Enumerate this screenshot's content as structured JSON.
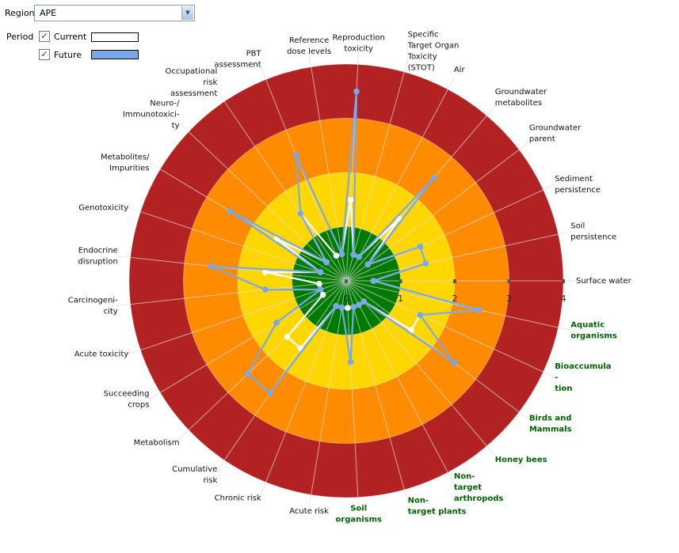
{
  "controls": {
    "region_label": "Region",
    "region_value": "APE",
    "period_label": "Period",
    "periods": [
      {
        "label": "Current",
        "checked": true,
        "color": "#ffffff"
      },
      {
        "label": "Future",
        "checked": true,
        "color": "#78a8e8"
      }
    ]
  },
  "chart_data": {
    "type": "radar",
    "title": "",
    "rlim": [
      0,
      4
    ],
    "ticks": [
      "0",
      "1",
      "2",
      "3",
      "4"
    ],
    "bands": [
      {
        "to": 1,
        "color": "#007a00"
      },
      {
        "to": 2,
        "color": "#ffd700"
      },
      {
        "to": 3,
        "color": "#ff8c00"
      },
      {
        "to": 4,
        "color": "#b22222"
      }
    ],
    "axes": [
      {
        "label": "Surface water",
        "group": "env"
      },
      {
        "label": "Aquatic\norganisms",
        "group": "eco"
      },
      {
        "label": "Bioaccumula\n-\ntion",
        "group": "eco"
      },
      {
        "label": "Birds and\nMammals",
        "group": "eco"
      },
      {
        "label": "Honey bees",
        "group": "eco"
      },
      {
        "label": "Non-\ntarget\narthropods",
        "group": "eco"
      },
      {
        "label": "Non-\ntarget plants",
        "group": "eco"
      },
      {
        "label": "Soil\norganisms",
        "group": "eco"
      },
      {
        "label": "Acute risk",
        "group": "hum"
      },
      {
        "label": "Chronic risk",
        "group": "hum"
      },
      {
        "label": "Cumulative\nrisk",
        "group": "hum"
      },
      {
        "label": "Metabolism",
        "group": "hum"
      },
      {
        "label": "Succeeding\ncrops",
        "group": "hum"
      },
      {
        "label": "Acute toxicity",
        "group": "hum"
      },
      {
        "label": "Carcinogeni-\ncity",
        "group": "hum"
      },
      {
        "label": "Endocrine\ndisruption",
        "group": "hum"
      },
      {
        "label": "Genotoxicity",
        "group": "hum"
      },
      {
        "label": "Metabolites/\nImpurities",
        "group": "hum"
      },
      {
        "label": "Neuro-/\nImmunotoxici-\nty",
        "group": "hum"
      },
      {
        "label": "Occupational\nrisk\nassessment",
        "group": "hum"
      },
      {
        "label": "PBT\nassessment",
        "group": "hum"
      },
      {
        "label": "Reference\ndose levels",
        "group": "hum"
      },
      {
        "label": "Reproduction\ntoxicity",
        "group": "hum"
      },
      {
        "label": "Specific\nTarget Organ\nToxicity\n(STOT)",
        "group": "hum"
      },
      {
        "label": "Air",
        "group": "env"
      },
      {
        "label": "Groundwater\nmetabolites",
        "group": "env"
      },
      {
        "label": "Groundwater\nparent",
        "group": "env"
      },
      {
        "label": "Sediment\npersistence",
        "group": "env"
      },
      {
        "label": "Soil\npersistence",
        "group": "env"
      }
    ],
    "series": [
      {
        "name": "Current",
        "color": "#ffffff",
        "values": [
          0.5,
          2.5,
          1.5,
          1.5,
          0.5,
          0.5,
          0.5,
          0.5,
          0.5,
          0.5,
          1.5,
          1.5,
          0.5,
          0.5,
          0.5,
          1.5,
          0.5,
          1.5,
          0.5,
          1.5,
          0.5,
          0.5,
          1.5,
          0.5,
          0.5,
          1.5,
          0.5,
          1.5,
          1.5
        ]
      },
      {
        "name": "Future",
        "color": "#78a8e8",
        "values": [
          0.5,
          2.5,
          1.5,
          2.5,
          0.5,
          0.5,
          0.5,
          1.5,
          0.5,
          0.5,
          2.5,
          2.5,
          1.5,
          0.5,
          1.5,
          2.5,
          0.5,
          2.5,
          0.5,
          1.5,
          2.5,
          0.5,
          3.5,
          0.5,
          0.5,
          2.5,
          0.5,
          1.5,
          1.5
        ]
      }
    ]
  }
}
